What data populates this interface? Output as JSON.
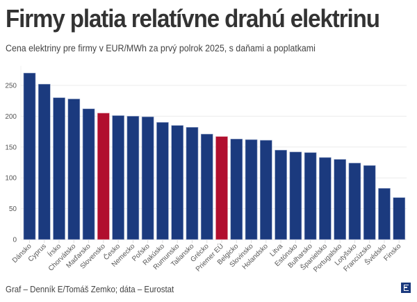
{
  "header": {
    "title": "Firmy platia relatívne drahú elektrinu",
    "subtitle": "Cena elektriny pre firmy v EUR/MWh za prvý polrok 2025, s daňami a poplatkami"
  },
  "footer": {
    "source": "Graf – Denník E/Tomáš Zemko; dáta – Eurostat",
    "logo_icon": "dennik-e-logo-icon"
  },
  "colors": {
    "default_bar": "#1b3a7e",
    "highlight_bar": "#b10f2e",
    "grid": "#ebebeb",
    "tick_label": "#555555"
  },
  "chart_data": {
    "type": "bar",
    "title": "Firmy platia relatívne drahú elektrinu",
    "subtitle": "Cena elektriny pre firmy v EUR/MWh za prvý polrok 2025, s daňami a poplatkami",
    "xlabel": "",
    "ylabel": "",
    "ylim": [
      0,
      280
    ],
    "yticks": [
      0,
      50,
      100,
      150,
      200,
      250
    ],
    "grid": true,
    "legend": "none",
    "categories": [
      "Dánsko",
      "Cyprus",
      "Írsko",
      "Chorvátsko",
      "Maďarsko",
      "Slovensko",
      "Česko",
      "Nemecko",
      "Poľsko",
      "Rakúsko",
      "Rumunsko",
      "Taliansko",
      "Grécko",
      "Priemer EÚ",
      "Belgicko",
      "Slovinsko",
      "Holandsko",
      "Litva",
      "Estónsko",
      "Bulharsko",
      "Španielsko",
      "Portugalsko",
      "Lotyšsko",
      "Francúzsko",
      "Švédsko",
      "Fínsko"
    ],
    "values": [
      270,
      252,
      230,
      228,
      212,
      205,
      201,
      200,
      199,
      190,
      185,
      182,
      171,
      167,
      163,
      162,
      161,
      145,
      142,
      141,
      133,
      130,
      124,
      120,
      83,
      68
    ],
    "highlighted": [
      "Slovensko",
      "Priemer EÚ"
    ]
  }
}
